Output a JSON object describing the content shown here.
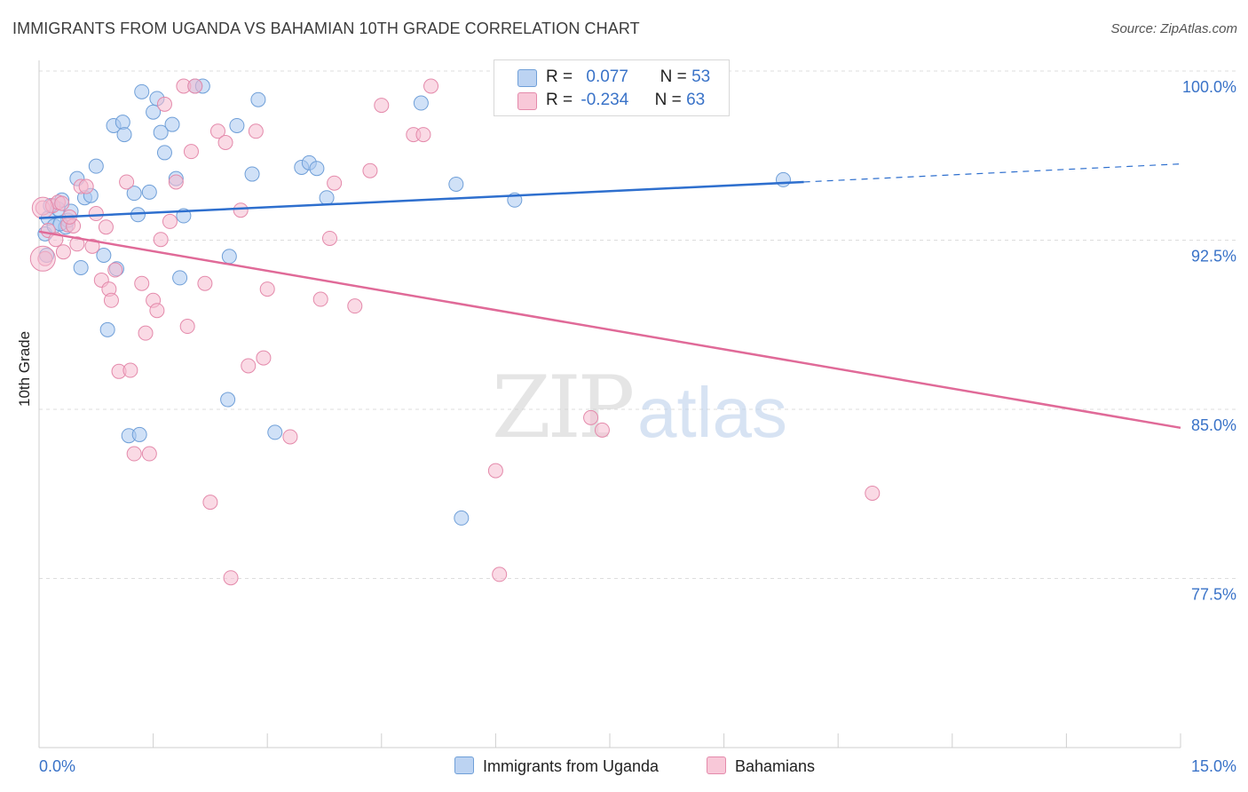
{
  "header": {
    "title": "IMMIGRANTS FROM UGANDA VS BAHAMIAN 10TH GRADE CORRELATION CHART",
    "source": "Source: ZipAtlas.com"
  },
  "watermark": {
    "zip": "ZIP",
    "atlas": "atlas"
  },
  "legend": {
    "uganda": {
      "r_label": "R =",
      "r_value": "0.077",
      "n_label": "N =",
      "n_value": "53"
    },
    "bahamas": {
      "r_label": "R =",
      "r_value": "-0.234",
      "n_label": "N =",
      "n_value": "63"
    }
  },
  "colors": {
    "blue_fill": "#aac8f0",
    "blue_stroke": "#6f9fd8",
    "blue_line": "#2e6fce",
    "pink_fill": "#f6bcd0",
    "pink_stroke": "#e48aab",
    "pink_line": "#e06a98",
    "tick_label": "#3a73c8",
    "grid": "#dddddd"
  },
  "chart_data": {
    "type": "scatter",
    "title": "IMMIGRANTS FROM UGANDA VS BAHAMIAN 10TH GRADE CORRELATION CHART",
    "xlabel": "",
    "ylabel": "10th Grade",
    "xlim": [
      0,
      15
    ],
    "ylim": [
      70.0,
      100.7
    ],
    "x_tick_labels": [
      {
        "value": 0,
        "label": "0.0%"
      },
      {
        "value": 15,
        "label": "15.0%"
      }
    ],
    "y_tick_labels": [
      {
        "value": 100.0,
        "label": "100.0%"
      },
      {
        "value": 92.5,
        "label": "92.5%"
      },
      {
        "value": 85.0,
        "label": "85.0%"
      },
      {
        "value": 77.5,
        "label": "77.5%"
      }
    ],
    "grid": true,
    "legend_position": "top-center",
    "series": [
      {
        "name": "Immigrants from Uganda",
        "color": "#aac8f0",
        "r": 0.077,
        "n": 53,
        "trend": {
          "x": [
            0.0,
            10.05
          ],
          "y": [
            94.15,
            95.75
          ],
          "extended_to_x": 15.0,
          "extended_y": 96.55
        },
        "points": [
          [
            0.08,
            93.45
          ],
          [
            0.12,
            94.15
          ],
          [
            0.2,
            93.8
          ],
          [
            0.25,
            94.55
          ],
          [
            0.3,
            94.95
          ],
          [
            0.35,
            93.75
          ],
          [
            0.38,
            94.05
          ],
          [
            0.42,
            94.45
          ],
          [
            0.5,
            95.9
          ],
          [
            0.55,
            91.95
          ],
          [
            0.6,
            95.05
          ],
          [
            0.68,
            95.15
          ],
          [
            0.75,
            96.45
          ],
          [
            0.85,
            92.5
          ],
          [
            0.9,
            89.2
          ],
          [
            0.98,
            98.25
          ],
          [
            1.02,
            91.9
          ],
          [
            1.1,
            98.4
          ],
          [
            1.12,
            97.85
          ],
          [
            1.18,
            84.5
          ],
          [
            1.25,
            95.25
          ],
          [
            1.3,
            94.3
          ],
          [
            1.32,
            84.55
          ],
          [
            1.35,
            99.75
          ],
          [
            1.45,
            95.3
          ],
          [
            1.5,
            98.85
          ],
          [
            1.55,
            99.45
          ],
          [
            1.6,
            97.95
          ],
          [
            1.65,
            97.05
          ],
          [
            1.75,
            98.3
          ],
          [
            1.8,
            95.9
          ],
          [
            1.85,
            91.5
          ],
          [
            1.9,
            94.25
          ],
          [
            2.05,
            100.0
          ],
          [
            2.15,
            100.0
          ],
          [
            2.48,
            86.1
          ],
          [
            2.5,
            92.45
          ],
          [
            2.6,
            98.25
          ],
          [
            2.8,
            96.1
          ],
          [
            2.88,
            99.4
          ],
          [
            3.1,
            84.65
          ],
          [
            3.45,
            96.4
          ],
          [
            3.55,
            96.6
          ],
          [
            3.65,
            96.35
          ],
          [
            3.78,
            95.05
          ],
          [
            5.02,
            99.25
          ],
          [
            5.48,
            95.65
          ],
          [
            5.55,
            80.85
          ],
          [
            6.25,
            94.95
          ],
          [
            9.78,
            95.85
          ],
          [
            0.1,
            92.5
          ],
          [
            0.15,
            94.7
          ],
          [
            0.28,
            93.9
          ]
        ]
      },
      {
        "name": "Bahamians",
        "color": "#f6bcd0",
        "r": -0.234,
        "n": 63,
        "trend": {
          "x": [
            0.0,
            15.0
          ],
          "y": [
            93.55,
            84.85
          ]
        },
        "points": [
          [
            0.05,
            94.6
          ],
          [
            0.08,
            92.35
          ],
          [
            0.12,
            93.6
          ],
          [
            0.18,
            94.7
          ],
          [
            0.25,
            94.85
          ],
          [
            0.32,
            92.65
          ],
          [
            0.38,
            93.85
          ],
          [
            0.45,
            93.8
          ],
          [
            0.55,
            95.55
          ],
          [
            0.62,
            95.55
          ],
          [
            0.7,
            92.9
          ],
          [
            0.75,
            94.35
          ],
          [
            0.82,
            91.4
          ],
          [
            0.88,
            93.75
          ],
          [
            0.92,
            91.0
          ],
          [
            0.95,
            90.5
          ],
          [
            1.0,
            91.85
          ],
          [
            1.05,
            87.35
          ],
          [
            1.15,
            95.75
          ],
          [
            1.2,
            87.4
          ],
          [
            1.25,
            83.7
          ],
          [
            1.35,
            91.25
          ],
          [
            1.4,
            89.05
          ],
          [
            1.45,
            83.7
          ],
          [
            1.5,
            90.5
          ],
          [
            1.55,
            90.05
          ],
          [
            1.6,
            93.2
          ],
          [
            1.65,
            99.2
          ],
          [
            1.72,
            94.0
          ],
          [
            1.8,
            95.75
          ],
          [
            1.9,
            100.0
          ],
          [
            1.95,
            89.35
          ],
          [
            2.0,
            97.1
          ],
          [
            2.05,
            100.0
          ],
          [
            2.18,
            91.25
          ],
          [
            2.25,
            81.55
          ],
          [
            2.35,
            98.0
          ],
          [
            2.45,
            97.5
          ],
          [
            2.52,
            78.2
          ],
          [
            2.65,
            94.5
          ],
          [
            2.75,
            87.6
          ],
          [
            2.85,
            98.0
          ],
          [
            2.95,
            87.95
          ],
          [
            3.0,
            91.0
          ],
          [
            3.3,
            84.45
          ],
          [
            3.7,
            90.55
          ],
          [
            3.82,
            93.25
          ],
          [
            3.88,
            95.7
          ],
          [
            4.15,
            90.25
          ],
          [
            4.35,
            96.25
          ],
          [
            4.5,
            99.15
          ],
          [
            4.92,
            97.85
          ],
          [
            5.05,
            97.85
          ],
          [
            5.15,
            100.0
          ],
          [
            6.0,
            82.95
          ],
          [
            6.05,
            78.35
          ],
          [
            7.25,
            85.3
          ],
          [
            7.4,
            84.75
          ],
          [
            10.95,
            81.95
          ],
          [
            0.3,
            94.8
          ],
          [
            0.4,
            94.2
          ],
          [
            0.5,
            93.0
          ],
          [
            0.22,
            93.2
          ]
        ]
      }
    ]
  },
  "bottom_legend": {
    "uganda_label": "Immigrants from Uganda",
    "bahamas_label": "Bahamians"
  }
}
